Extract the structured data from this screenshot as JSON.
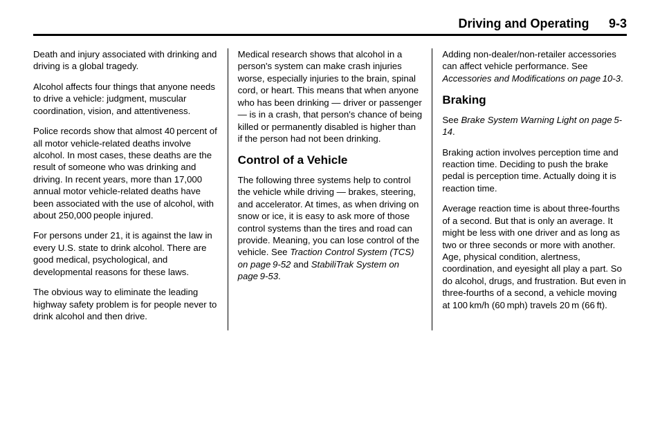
{
  "header": {
    "title": "Driving and Operating",
    "page": "9-3"
  },
  "col1": {
    "p1": "Death and injury associated with drinking and driving is a global tragedy.",
    "p2": "Alcohol affects four things that anyone needs to drive a vehicle: judgment, muscular coordination, vision, and attentiveness.",
    "p3": "Police records show that almost 40 percent of all motor vehicle-related deaths involve alcohol. In most cases, these deaths are the result of someone who was drinking and driving. In recent years, more than 17,000 annual motor vehicle-related deaths have been associated with the use of alcohol, with about 250,000 people injured.",
    "p4": "For persons under 21, it is against the law in every U.S. state to drink alcohol. There are good medical, psychological, and developmental reasons for these laws.",
    "p5": "The obvious way to eliminate the leading highway safety problem is for people never to drink alcohol and then drive."
  },
  "col2": {
    "p1": "Medical research shows that alcohol in a person's system can make crash injuries worse, especially injuries to the brain, spinal cord, or heart. This means that when anyone who has been drinking — driver or passenger — is in a crash, that person's chance of being killed or permanently disabled is higher than if the person had not been drinking.",
    "h1": "Control of a Vehicle",
    "p2a": "The following three systems help to control the vehicle while driving — brakes, steering, and accelerator. At times, as when driving on snow or ice, it is easy to ask more of those control systems than the tires and road can provide. Meaning, you can lose control of the vehicle. See ",
    "p2b": "Traction Control System (TCS) on page 9-52",
    "p2c": " and ",
    "p2d": "StabiliTrak System on page 9-53",
    "p2e": "."
  },
  "col3": {
    "p1a": "Adding non-dealer/non-retailer accessories can affect vehicle performance. See ",
    "p1b": "Accessories and Modifications on page 10-3",
    "p1c": ".",
    "h1": "Braking",
    "p2a": "See ",
    "p2b": "Brake System Warning Light on page 5-14",
    "p2c": ".",
    "p3": "Braking action involves perception time and reaction time. Deciding to push the brake pedal is perception time. Actually doing it is reaction time.",
    "p4": "Average reaction time is about three-fourths of a second. But that is only an average. It might be less with one driver and as long as two or three seconds or more with another. Age, physical condition, alertness, coordination, and eyesight all play a part. So do alcohol, drugs, and frustration. But even in three-fourths of a second, a vehicle moving at 100 km/h (60 mph) travels 20 m (66 ft)."
  }
}
